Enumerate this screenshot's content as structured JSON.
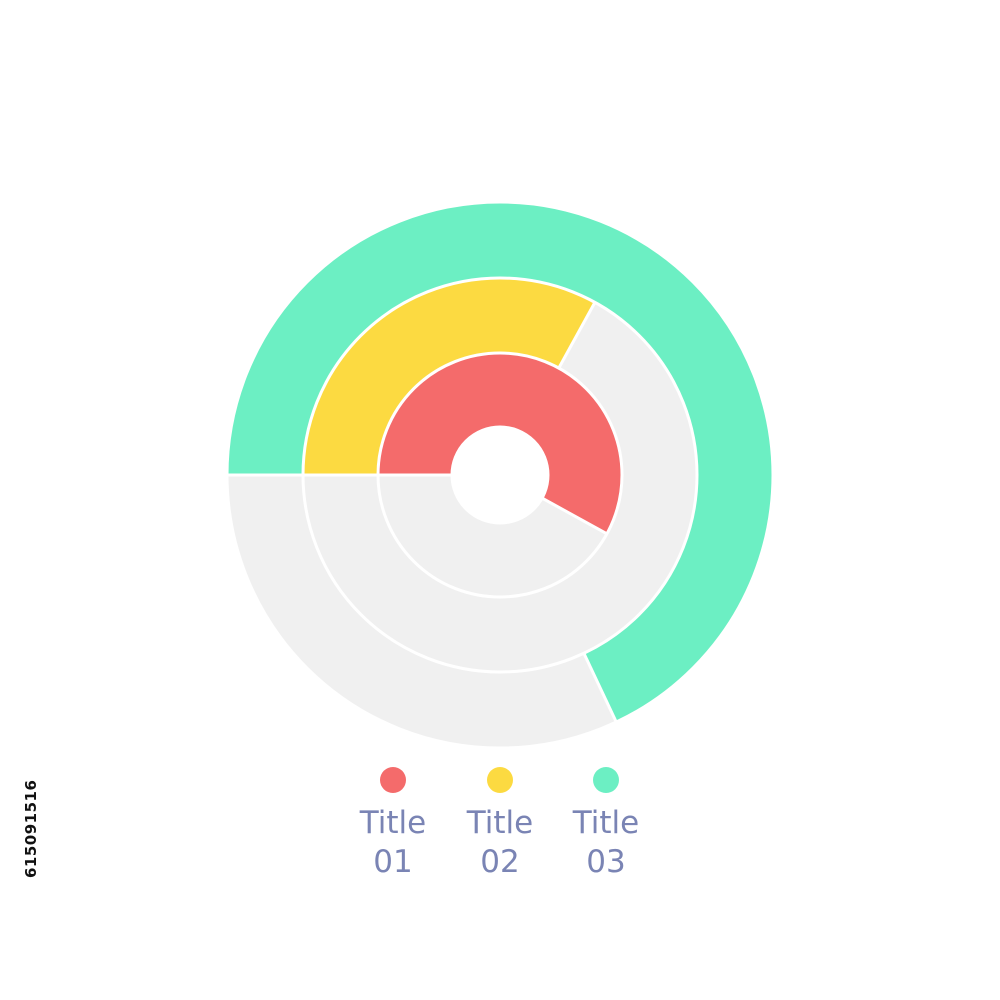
{
  "chart_data": {
    "type": "radial-bar",
    "ring_order": "inner-to-outer",
    "start_angle_deg": 180,
    "direction": "clockwise",
    "max_value": 100,
    "series": [
      {
        "name": "Title\n01",
        "label_lines": [
          "Title",
          "01"
        ],
        "color": "#f46b6b",
        "value": 58
      },
      {
        "name": "Title\n02",
        "label_lines": [
          "Title",
          "02"
        ],
        "color": "#fcda41",
        "value": 33
      },
      {
        "name": "Title\n03",
        "label_lines": [
          "Title",
          "03"
        ],
        "color": "#6cefc3",
        "value": 68
      }
    ],
    "track_color": "#f0f0f0",
    "separator_color": "#ffffff",
    "legend_position": "bottom"
  },
  "watermark": {
    "id": "615091516"
  }
}
